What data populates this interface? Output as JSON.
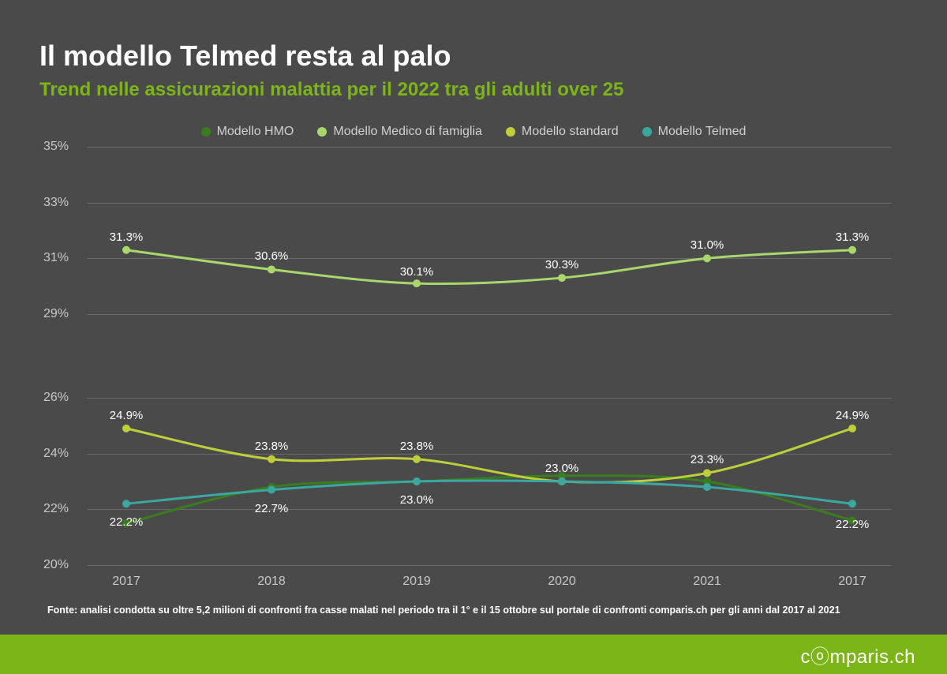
{
  "title": "Il modello Telmed resta al palo",
  "subtitle": "Trend nelle assicurazioni malattia per il 2022 tra gli adulti over 25",
  "source": "Fonte: analisi condotta su oltre 5,2 milioni di confronti fra casse malati nel periodo tra il 1° e il 15 ottobre sul portale di confronti comparis.ch per gli anni dal 2017 al 2021",
  "brand": "comparis.ch",
  "chart": {
    "type": "line",
    "background": "#4a4a4a",
    "grid_color": "#6a6a6a",
    "text_color": "#ffffff",
    "axis_label_color": "#c8c8c8",
    "y_ticks": [
      20,
      22,
      24,
      26,
      29,
      31,
      33,
      35
    ],
    "y_min": 20,
    "y_max": 35,
    "x_labels": [
      "2017",
      "2018",
      "2019",
      "2020",
      "2021",
      "2017"
    ],
    "series": [
      {
        "name": "Modello HMO",
        "color": "#3a7d1f",
        "values": [
          21.5,
          22.8,
          23.0,
          23.2,
          23.0,
          21.6
        ],
        "labels": [
          "",
          "",
          "",
          "",
          "",
          ""
        ],
        "label_offsets": [
          0,
          0,
          0,
          0,
          0,
          0
        ]
      },
      {
        "name": "Modello Medico di famiglia",
        "color": "#a8d86b",
        "values": [
          31.3,
          30.6,
          30.1,
          30.3,
          31.0,
          31.3
        ],
        "labels": [
          "31.3%",
          "30.6%",
          "30.1%",
          "30.3%",
          "31.0%",
          "31.3%"
        ],
        "label_offsets": [
          -8,
          -8,
          -6,
          -8,
          -8,
          -8
        ]
      },
      {
        "name": "Modello standard",
        "color": "#bfcf3a",
        "values": [
          24.9,
          23.8,
          23.8,
          23.0,
          23.3,
          24.9
        ],
        "labels": [
          "24.9%",
          "23.8%",
          "23.8%",
          "",
          "23.3%",
          "24.9%"
        ],
        "label_offsets": [
          -8,
          -8,
          -8,
          0,
          -8,
          -8
        ]
      },
      {
        "name": "Modello Telmed",
        "color": "#3aa8a0",
        "values": [
          22.2,
          22.7,
          23.0,
          23.0,
          22.8,
          22.2
        ],
        "labels": [
          "22.2%",
          "22.7%",
          "23.0%",
          "23.0%",
          "",
          "22.2%"
        ],
        "label_offsets": [
          15,
          15,
          15,
          -8,
          0,
          18
        ]
      }
    ],
    "line_width": 3,
    "marker_radius": 5,
    "title_fontsize": 36,
    "subtitle_fontsize": 24,
    "axis_fontsize": 16,
    "datalabel_fontsize": 15
  },
  "colors": {
    "background": "#4a4a4a",
    "accent": "#7cb518",
    "subtitle": "#7cb518",
    "footer_bg": "#7cb518"
  }
}
